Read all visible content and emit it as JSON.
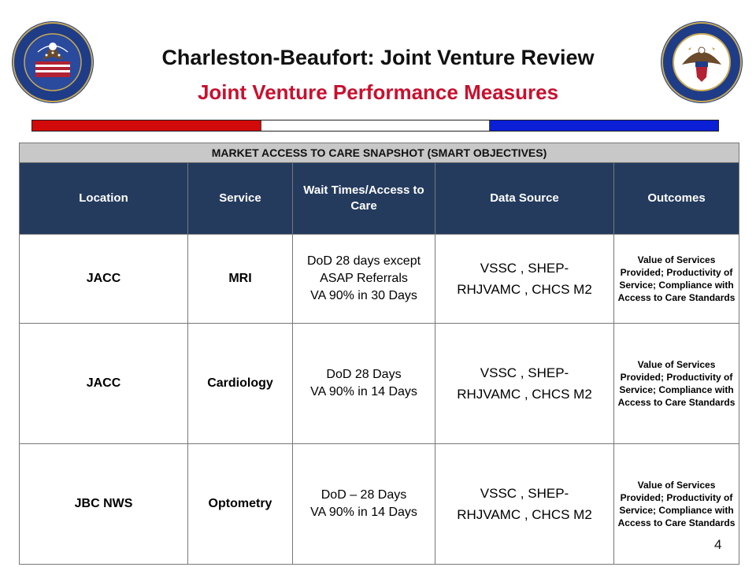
{
  "header": {
    "title": "Charleston-Beaufort: Joint Venture Review",
    "subtitle": "Joint Venture Performance Measures"
  },
  "seals": {
    "left": {
      "icon": "va-seal-icon",
      "colors": [
        "#1f3c88",
        "#c8a951",
        "#b22234"
      ]
    },
    "right": {
      "icon": "dod-seal-icon",
      "colors": [
        "#1f3c88",
        "#c8a951"
      ]
    }
  },
  "flag_bar": {
    "colors": [
      "#d20a0a",
      "#ffffff",
      "#0a1fd6"
    ]
  },
  "table": {
    "caption": "MARKET ACCESS TO CARE SNAPSHOT (SMART OBJECTIVES)",
    "columns": [
      "Location",
      "Service",
      "Wait Times/Access to Care",
      "Data Source",
      "Outcomes"
    ],
    "rows": [
      {
        "location": "JACC",
        "service": "MRI",
        "wait": [
          "DoD 28 days except",
          "ASAP Referrals",
          "VA 90% in 30 Days"
        ],
        "source": [
          "VSSC , SHEP-",
          "RHJVAMC , CHCS M2"
        ],
        "outcome": [
          "Value of Services Provided; Productivity of Service; Compliance with Access to Care Standards"
        ]
      },
      {
        "location": "JACC",
        "service": "Cardiology",
        "wait": [
          "DoD 28 Days",
          "VA 90% in 14 Days"
        ],
        "source": [
          "VSSC , SHEP-",
          "RHJVAMC , CHCS M2"
        ],
        "outcome": [
          "Value of Services Provided; Productivity of Service; Compliance with Access to Care Standards"
        ]
      },
      {
        "location": "JBC NWS",
        "service": "Optometry",
        "wait": [
          "DoD – 28 Days",
          "VA 90% in 14 Days"
        ],
        "source": [
          "VSSC , SHEP-",
          "RHJVAMC , CHCS M2"
        ],
        "outcome": [
          "Value of Services Provided; Productivity of Service; Compliance with Access to Care Standards"
        ]
      }
    ]
  },
  "page_number": "4"
}
